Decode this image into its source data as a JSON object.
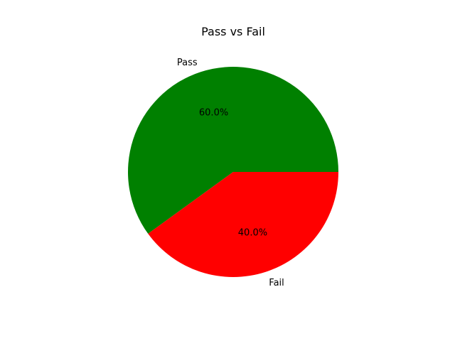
{
  "chart_data": {
    "type": "pie",
    "title": "Pass vs Fail",
    "categories": [
      "Pass",
      "Fail"
    ],
    "values": [
      60,
      40
    ],
    "percent_labels": [
      "60.0%",
      "40.0%"
    ],
    "colors": [
      "#008000",
      "#ff0000"
    ],
    "start_angle_deg": 0,
    "direction": "counterclockwise"
  }
}
